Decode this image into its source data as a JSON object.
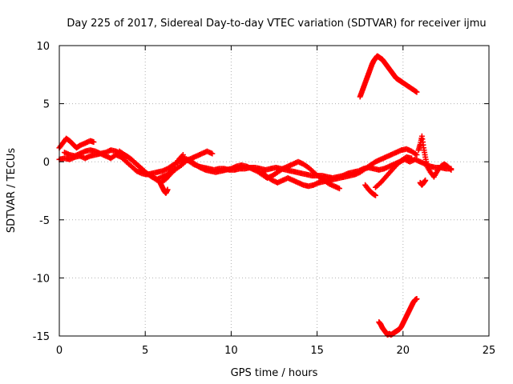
{
  "chart_data": {
    "type": "scatter",
    "title": "Day 225 of 2017, Sidereal Day-to-day VTEC variation (SDTVAR) for receiver ijmu",
    "xlabel": "GPS time / hours",
    "ylabel": "SDTVAR / TECUs",
    "xlim": [
      0,
      25
    ],
    "ylim": [
      -15,
      10
    ],
    "xticks": [
      0,
      5,
      10,
      15,
      20,
      25
    ],
    "yticks": [
      -15,
      -10,
      -5,
      0,
      5,
      10
    ],
    "grid": true,
    "marker": "plus",
    "series": [
      {
        "name": "SDTVAR",
        "color": "#ff0000",
        "segments": [
          {
            "x": [
              0.0,
              0.3,
              0.6,
              0.9,
              1.2,
              1.5,
              1.8,
              2.1,
              2.4,
              2.7,
              3.0,
              3.3,
              3.6,
              3.9,
              4.2,
              4.5,
              4.8,
              5.1,
              5.4,
              5.7,
              6.0,
              6.3,
              6.6,
              6.9,
              7.2,
              7.5,
              7.8,
              8.1,
              8.4,
              8.7,
              9.0,
              9.3,
              9.6,
              9.9,
              10.2,
              10.5,
              10.8,
              11.1,
              11.4,
              11.7,
              12.0,
              12.3,
              12.6,
              12.9,
              13.2,
              13.5,
              13.8,
              14.1,
              14.4,
              14.7,
              15.0,
              15.3,
              15.6,
              15.9,
              16.2,
              16.5,
              16.8,
              17.1,
              17.4,
              17.7,
              18.0,
              18.3,
              18.6,
              18.9,
              19.2,
              19.5,
              19.8,
              20.1,
              20.4,
              20.7,
              21.0,
              21.3,
              21.6,
              21.9,
              22.2,
              22.5,
              22.8
            ],
            "y": [
              0.2,
              0.3,
              0.2,
              0.4,
              0.5,
              0.3,
              0.5,
              0.6,
              0.7,
              0.5,
              0.3,
              0.6,
              0.4,
              0.0,
              -0.4,
              -0.8,
              -1.0,
              -1.1,
              -1.0,
              -0.9,
              -0.8,
              -0.6,
              -0.3,
              0.0,
              0.2,
              0.1,
              -0.2,
              -0.4,
              -0.5,
              -0.6,
              -0.7,
              -0.6,
              -0.6,
              -0.7,
              -0.7,
              -0.6,
              -0.6,
              -0.5,
              -0.5,
              -0.6,
              -0.7,
              -0.6,
              -0.5,
              -0.6,
              -0.7,
              -0.8,
              -0.9,
              -1.0,
              -1.1,
              -1.2,
              -1.2,
              -1.2,
              -1.3,
              -1.4,
              -1.3,
              -1.2,
              -1.0,
              -0.9,
              -0.8,
              -0.6,
              -0.5,
              -0.6,
              -0.7,
              -0.6,
              -0.4,
              -0.2,
              0.0,
              0.2,
              0.0,
              0.2,
              0.0,
              -0.2,
              -0.4,
              -0.5,
              -0.5,
              -0.6,
              -0.6
            ]
          },
          {
            "x": [
              0.0,
              0.2,
              0.4,
              0.6,
              0.8,
              1.0,
              1.2,
              1.5,
              1.8,
              2.0
            ],
            "y": [
              1.2,
              1.6,
              2.0,
              1.8,
              1.5,
              1.2,
              1.4,
              1.6,
              1.8,
              1.7
            ]
          },
          {
            "x": [
              0.3,
              0.6,
              0.9,
              1.2,
              1.5,
              1.8,
              2.1,
              2.4,
              2.7,
              3.0,
              3.3,
              3.6,
              3.9,
              4.2,
              4.5,
              4.8,
              5.1,
              5.4,
              5.7,
              6.0,
              6.3,
              6.6,
              6.9,
              7.2
            ],
            "y": [
              0.8,
              0.6,
              0.5,
              0.7,
              0.9,
              1.0,
              0.9,
              0.7,
              0.8,
              1.0,
              0.9,
              0.7,
              0.5,
              0.2,
              -0.2,
              -0.6,
              -1.0,
              -1.3,
              -1.5,
              -1.3,
              -1.1,
              -0.6,
              0.1,
              0.6
            ]
          },
          {
            "x": [
              3.5,
              3.8,
              4.1,
              4.4,
              4.7,
              5.0,
              5.3,
              5.6,
              5.9,
              6.2,
              6.5,
              6.8,
              7.1,
              7.4,
              7.7,
              8.0,
              8.3,
              8.6,
              8.9
            ],
            "y": [
              0.9,
              0.6,
              0.3,
              -0.1,
              -0.5,
              -0.9,
              -1.2,
              -1.5,
              -1.8,
              -1.5,
              -1.0,
              -0.6,
              -0.3,
              0.1,
              0.3,
              0.5,
              0.7,
              0.9,
              0.7
            ]
          },
          {
            "x": [
              5.9,
              6.0,
              6.1,
              6.2,
              6.3
            ],
            "y": [
              -1.9,
              -2.2,
              -2.5,
              -2.7,
              -2.4
            ]
          },
          {
            "x": [
              7.0,
              7.3,
              7.6,
              7.9,
              8.2,
              8.5,
              8.8,
              9.1,
              9.4,
              9.7,
              10.0,
              10.3,
              10.6,
              10.9,
              11.2,
              11.5,
              11.8,
              12.1,
              12.4,
              12.7,
              13.0,
              13.3,
              13.6,
              13.9,
              14.2,
              14.5,
              14.8,
              15.1,
              15.4,
              15.7,
              16.0,
              16.3
            ],
            "y": [
              0.2,
              0.3,
              0.1,
              -0.2,
              -0.5,
              -0.7,
              -0.8,
              -0.9,
              -0.8,
              -0.7,
              -0.6,
              -0.4,
              -0.3,
              -0.4,
              -0.6,
              -0.8,
              -1.1,
              -1.4,
              -1.2,
              -0.9,
              -0.6,
              -0.4,
              -0.2,
              0.0,
              -0.2,
              -0.5,
              -0.9,
              -1.3,
              -1.6,
              -1.9,
              -2.1,
              -2.3
            ]
          },
          {
            "x": [
              11.8,
              12.1,
              12.4,
              12.7,
              13.0,
              13.3,
              13.6,
              13.9,
              14.2,
              14.5,
              14.8,
              15.1,
              15.4,
              15.7,
              16.0,
              16.3,
              16.6,
              16.9,
              17.2,
              17.5,
              17.8,
              18.1,
              18.4,
              18.7,
              19.0,
              19.3,
              19.6,
              19.9,
              20.2,
              20.5,
              20.8
            ],
            "y": [
              -0.9,
              -1.3,
              -1.6,
              -1.8,
              -1.6,
              -1.4,
              -1.6,
              -1.8,
              -2.0,
              -2.1,
              -2.0,
              -1.8,
              -1.7,
              -1.6,
              -1.5,
              -1.4,
              -1.3,
              -1.2,
              -1.1,
              -0.9,
              -0.6,
              -0.3,
              0.0,
              0.2,
              0.4,
              0.6,
              0.8,
              1.0,
              1.1,
              0.9,
              0.6
            ]
          },
          {
            "x": [
              17.8,
              18.0,
              18.2,
              18.4
            ],
            "y": [
              -2.0,
              -2.4,
              -2.7,
              -2.9
            ]
          },
          {
            "x": [
              18.4,
              18.7,
              19.0,
              19.3,
              19.6,
              19.9,
              20.2,
              20.5
            ],
            "y": [
              -2.2,
              -1.8,
              -1.3,
              -0.8,
              -0.3,
              0.1,
              0.4,
              0.3
            ]
          },
          {
            "x": [
              20.9,
              21.0,
              21.1,
              21.2,
              21.3,
              21.4,
              21.6,
              21.8,
              22.0,
              22.2,
              22.4,
              22.6,
              22.8
            ],
            "y": [
              1.0,
              1.5,
              2.2,
              1.2,
              0.4,
              -0.4,
              -0.9,
              -1.3,
              -0.8,
              -0.4,
              -0.2,
              -0.4,
              -0.7
            ]
          },
          {
            "x": [
              21.0,
              21.1,
              21.2,
              21.3
            ],
            "y": [
              -1.8,
              -2.0,
              -1.8,
              -1.6
            ]
          },
          {
            "x": [
              17.5,
              17.6,
              17.7,
              17.8,
              17.9,
              18.0,
              18.1,
              18.2,
              18.3,
              18.4,
              18.5,
              18.6,
              18.7,
              18.8,
              18.9,
              19.0,
              19.1,
              19.2,
              19.3,
              19.4,
              19.5,
              19.6,
              19.7,
              19.8,
              19.9,
              20.0,
              20.2,
              20.4,
              20.6,
              20.8
            ],
            "y": [
              5.6,
              6.0,
              6.4,
              6.8,
              7.2,
              7.6,
              8.0,
              8.4,
              8.7,
              8.9,
              9.1,
              9.0,
              8.9,
              8.8,
              8.6,
              8.4,
              8.2,
              8.0,
              7.8,
              7.6,
              7.4,
              7.2,
              7.1,
              7.0,
              6.9,
              6.8,
              6.6,
              6.4,
              6.2,
              6.0
            ]
          },
          {
            "x": [
              18.6,
              18.7,
              18.8,
              18.9,
              19.0,
              19.1,
              19.2,
              19.3,
              19.4,
              19.5,
              19.6,
              19.7,
              19.8,
              19.9,
              20.0,
              20.1,
              20.2,
              20.3,
              20.4,
              20.5,
              20.6,
              20.7,
              20.8
            ],
            "y": [
              -13.8,
              -14.0,
              -14.3,
              -14.5,
              -14.7,
              -14.9,
              -14.8,
              -14.9,
              -14.8,
              -14.7,
              -14.6,
              -14.5,
              -14.4,
              -14.2,
              -13.9,
              -13.6,
              -13.3,
              -13.0,
              -12.7,
              -12.4,
              -12.1,
              -11.9,
              -11.8
            ]
          }
        ]
      }
    ]
  }
}
